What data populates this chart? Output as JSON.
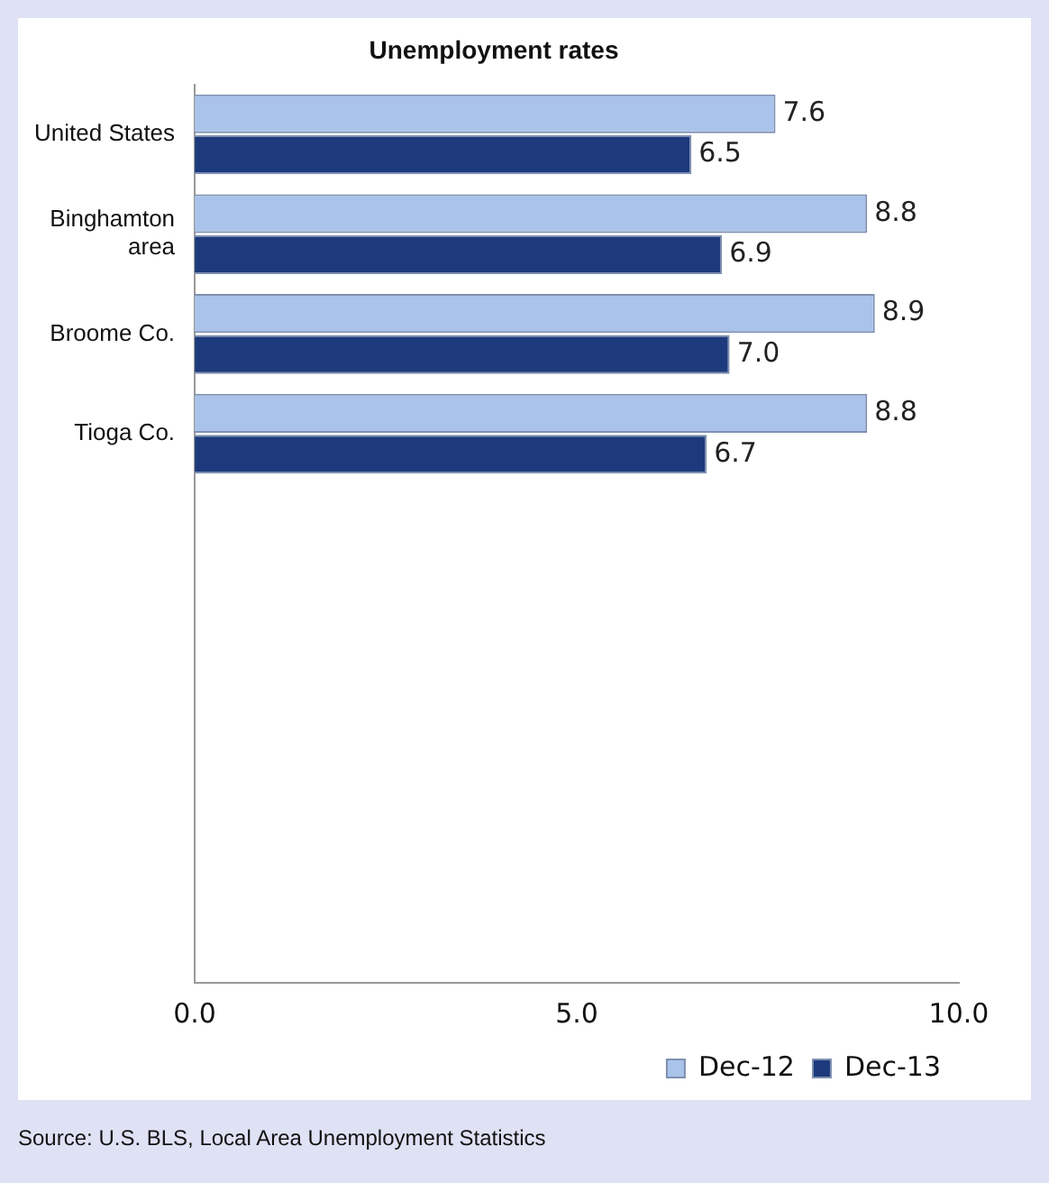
{
  "chart_data": {
    "type": "bar",
    "orientation": "horizontal",
    "title": "Unemployment rates",
    "categories": [
      "United States",
      "Binghamton area",
      "Broome Co.",
      "Tioga Co.",
      null,
      null,
      null,
      null,
      null
    ],
    "series": [
      {
        "name": "Dec-12",
        "color": "#a9c3ea",
        "values": [
          7.6,
          8.8,
          8.9,
          8.8,
          null,
          null,
          null,
          null,
          null
        ],
        "value_labels": [
          "7.6",
          "8.8",
          "8.9",
          "8.8",
          null,
          null,
          null,
          null,
          null
        ]
      },
      {
        "name": "Dec-13",
        "color": "#1d3a7c",
        "values": [
          6.5,
          6.9,
          7.0,
          6.7,
          null,
          null,
          null,
          null,
          null
        ],
        "value_labels": [
          "6.5",
          "6.9",
          "7.0",
          "6.7",
          null,
          null,
          null,
          null,
          null
        ]
      }
    ],
    "xlim": [
      0,
      10
    ],
    "xticks": [
      {
        "value": 0,
        "label": "0.0"
      },
      {
        "value": 5,
        "label": "5.0"
      },
      {
        "value": 10,
        "label": "10.0"
      }
    ],
    "grid": false,
    "legend": "bottom right",
    "annotations": [
      "Source: U.S. BLS, Local Area Unemployment Statistics"
    ]
  }
}
